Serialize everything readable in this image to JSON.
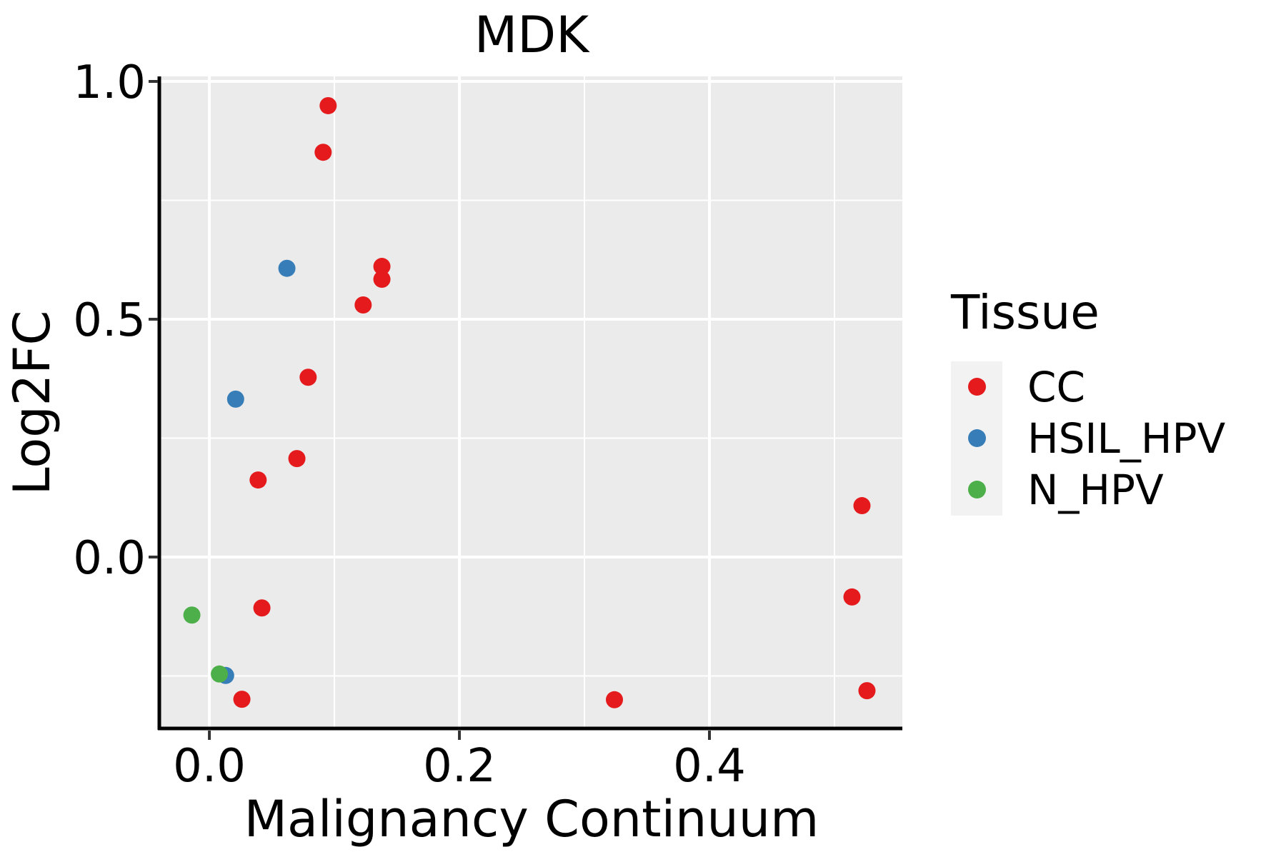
{
  "title": "MDK",
  "colors": {
    "panel_background": "#EBEBEB",
    "gridline": "#FFFFFF",
    "axis_line": "#000000",
    "tick_mark": "#333333",
    "text": "#000000",
    "legend_key_background": "#F2F2F2",
    "cc": "#E41A1C",
    "hsil_hpv": "#377EB8",
    "n_hpv": "#4DAF4A"
  },
  "legend": {
    "title": "Tissue",
    "position": "right"
  },
  "chart_data": {
    "type": "scatter",
    "title": "MDK",
    "xlabel": "Malignancy Continuum",
    "ylabel": "Log2FC",
    "legend_title": "Tissue",
    "legend_position": "right",
    "grid": true,
    "xlim": [
      -0.0389,
      0.5543
    ],
    "ylim": [
      -0.3604,
      1.0105
    ],
    "x_major_ticks": [
      {
        "value": 0.0,
        "label": "0.0"
      },
      {
        "value": 0.2,
        "label": "0.2"
      },
      {
        "value": 0.4,
        "label": "0.4"
      }
    ],
    "y_major_ticks": [
      {
        "value": 1.0,
        "label": "1.0"
      },
      {
        "value": 0.5,
        "label": "0.5"
      },
      {
        "value": 0.0,
        "label": "0.0"
      }
    ],
    "x_minor_ticks": [
      0.1,
      0.3,
      0.5
    ],
    "y_minor_ticks": [
      0.75,
      0.25,
      -0.25
    ],
    "point_radius_px": 12,
    "series": [
      {
        "name": "CC",
        "color": "#E41A1C",
        "points": [
          [
            0.095,
            0.949
          ],
          [
            0.091,
            0.851
          ],
          [
            0.138,
            0.611
          ],
          [
            0.138,
            0.584
          ],
          [
            0.123,
            0.53
          ],
          [
            0.079,
            0.378
          ],
          [
            0.07,
            0.207
          ],
          [
            0.039,
            0.162
          ],
          [
            0.042,
            -0.107
          ],
          [
            0.026,
            -0.299
          ],
          [
            0.324,
            -0.3
          ],
          [
            0.522,
            0.108
          ],
          [
            0.514,
            -0.084
          ],
          [
            0.526,
            -0.281
          ]
        ]
      },
      {
        "name": "HSIL_HPV",
        "color": "#377EB8",
        "points": [
          [
            0.062,
            0.607
          ],
          [
            0.021,
            0.332
          ],
          [
            0.013,
            -0.249
          ]
        ]
      },
      {
        "name": "N_HPV",
        "color": "#4DAF4A",
        "points": [
          [
            -0.014,
            -0.122
          ],
          [
            0.008,
            -0.246
          ]
        ]
      }
    ]
  }
}
